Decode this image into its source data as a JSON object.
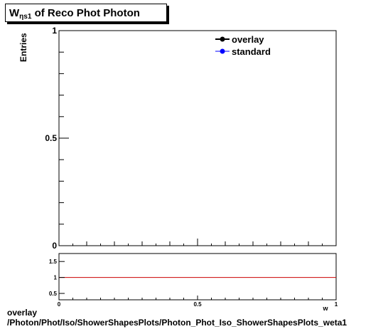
{
  "title": {
    "main": "W",
    "sub": "ηs1",
    "rest": " of Reco Phot Photon"
  },
  "ylabel": "Entries",
  "footer": {
    "line1": "overlay",
    "line2": "/Photon/Phot/Iso/ShowerShapesPlots/Photon_Phot_Iso_ShowerShapesPlots_weta1"
  },
  "colors": {
    "overlay": "#000000",
    "standard": "#0000ff",
    "ratio_line": "#cc0000"
  },
  "chart_data": [
    {
      "type": "line",
      "title": "Wηs1 of Reco Phot Photon",
      "ylabel": "Entries",
      "xlim": [
        0,
        1
      ],
      "ylim": [
        0,
        1
      ],
      "y_ticks": [
        {
          "value": 0,
          "label": "0"
        },
        {
          "value": 0.5,
          "label": "0.5"
        },
        {
          "value": 1,
          "label": "1"
        }
      ],
      "legend": "top-right",
      "series": [
        {
          "name": "overlay",
          "marker": "circle",
          "values": []
        },
        {
          "name": "standard",
          "marker": "circle",
          "values": []
        }
      ]
    },
    {
      "type": "line",
      "xlabel": "w",
      "xlim": [
        0,
        1
      ],
      "ylim": [
        0.3,
        1.75
      ],
      "x_ticks": [
        {
          "value": 0,
          "label": "0"
        },
        {
          "value": 0.5,
          "label": "0.5"
        },
        {
          "value": 1,
          "label": "1"
        }
      ],
      "y_ticks": [
        {
          "value": 0.5,
          "label": "0.5"
        },
        {
          "value": 1,
          "label": "1"
        },
        {
          "value": 1.5,
          "label": "1.5"
        }
      ],
      "reference_line": 1
    }
  ]
}
